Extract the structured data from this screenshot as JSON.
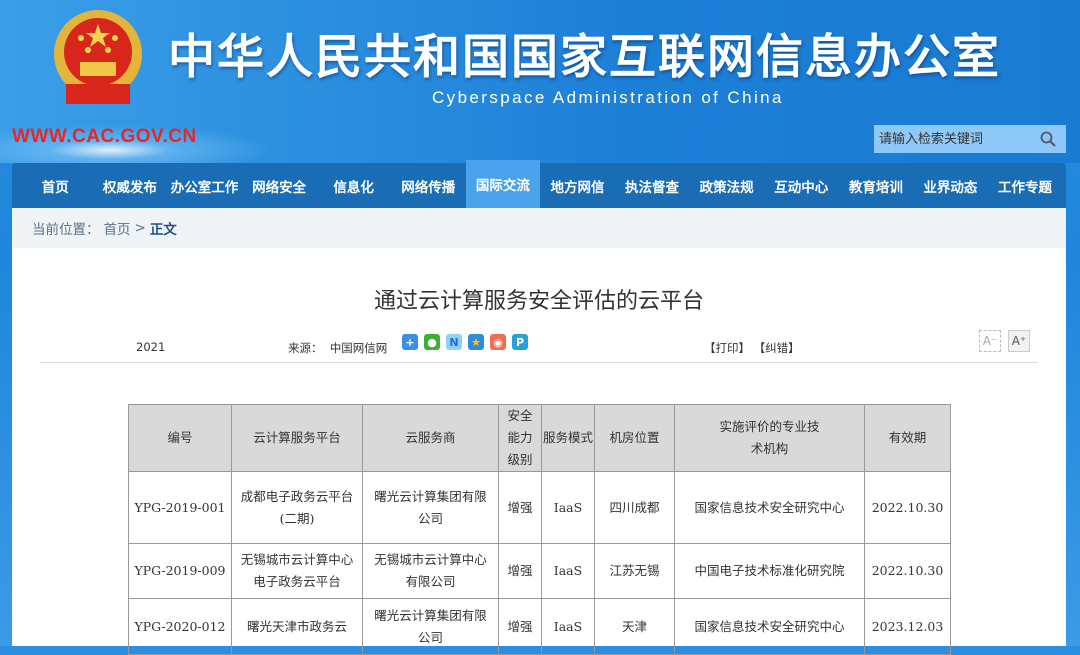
{
  "header": {
    "title_cn": "中华人民共和国国家互联网信息办公室",
    "title_en": "Cyberspace Administration of China",
    "site_url": "WWW.CAC.GOV.CN",
    "search_placeholder": "请输入检索关键词"
  },
  "nav": {
    "items": [
      "首页",
      "权威发布",
      "办公室工作",
      "网络安全",
      "信息化",
      "网络传播",
      "国际交流",
      "地方网信",
      "执法督查",
      "政策法规",
      "互动中心",
      "教育培训",
      "业界动态",
      "工作专题"
    ],
    "active": "国际交流"
  },
  "breadcrumb": {
    "label": "当前位置：",
    "home": "首页",
    "sep": ">",
    "current": "正文"
  },
  "article": {
    "title": "通过云计算服务安全评估的云平台",
    "year": "2021",
    "source_label": "来源：",
    "source": "中国网信网",
    "print": "【打印】",
    "correct": "【纠错】",
    "font_dec": "A⁻",
    "font_inc": "A⁺",
    "share_icons": [
      "add-share",
      "wechat",
      "sina-news",
      "qzone",
      "weibo",
      "tencent"
    ]
  },
  "table": {
    "headers": [
      "编号",
      "云计算服务平台",
      "云服务商",
      "安全能力级别",
      "服务模式",
      "机房位置",
      "实施评价的专业技术机构",
      "有效期"
    ],
    "rows": [
      [
        "YPG-2019-001",
        "成都电子政务云平台(二期)",
        "曙光云计算集团有限公司",
        "增强",
        "IaaS",
        "四川成都",
        "国家信息技术安全研究中心",
        "2022.10.30"
      ],
      [
        "YPG-2019-009",
        "无锡城市云计算中心电子政务云平台",
        "无锡城市云计算中心有限公司",
        "增强",
        "IaaS",
        "江苏无锡",
        "中国电子技术标准化研究院",
        "2022.10.30"
      ],
      [
        "YPG-2020-012",
        "曙光天津市政务云",
        "曙光云计算集团有限公司",
        "增强",
        "IaaS",
        "天津",
        "国家信息技术安全研究中心",
        "2023.12.03"
      ]
    ]
  },
  "colors": {
    "nav": "#1a6db5",
    "nav_active": "#4aa3ea",
    "site_url": "#e8262a"
  }
}
